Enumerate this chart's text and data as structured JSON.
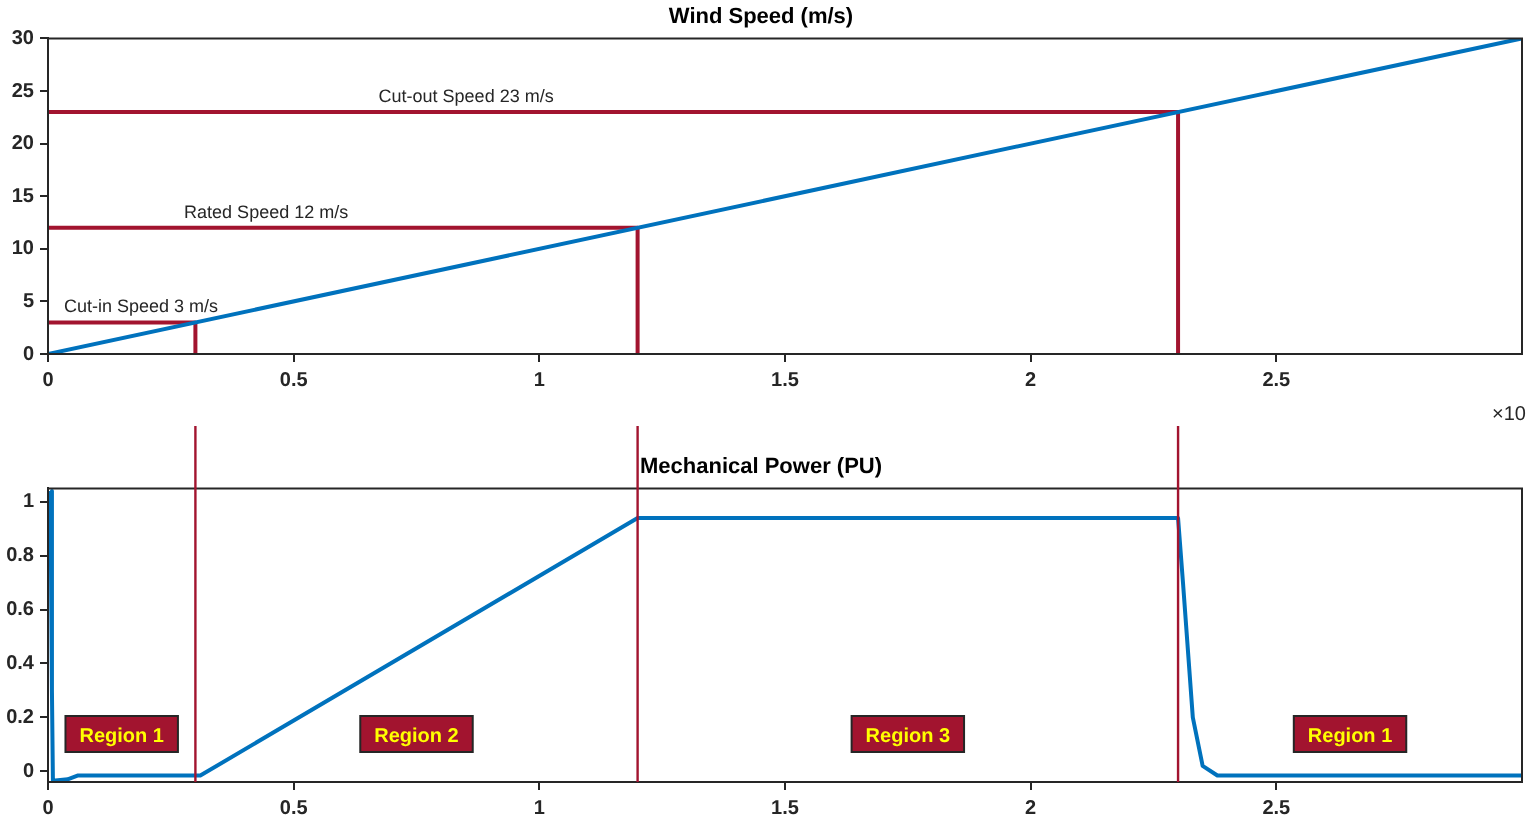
{
  "chart_data": [
    {
      "type": "line",
      "title": "Wind Speed (m/s)",
      "xlim": [
        0,
        3
      ],
      "ylim": [
        0,
        30
      ],
      "xticks": [
        0,
        0.5,
        1,
        1.5,
        2,
        2.5
      ],
      "yticks": [
        0,
        5,
        10,
        15,
        20,
        25,
        30
      ],
      "grid": false,
      "legend": false,
      "marker": "none",
      "line_style": "solid",
      "annotations": [
        "×10"
      ],
      "series": [
        {
          "color": "#0072bd",
          "x": [
            0,
            3
          ],
          "values": [
            0,
            30
          ]
        },
        {
          "name": "Cut-in Speed 3 m/s",
          "color": "#a2142f",
          "x": [
            0,
            0.3,
            0.3
          ],
          "values": [
            3,
            3,
            0
          ]
        },
        {
          "name": "Rated Speed 12 m/s",
          "color": "#a2142f",
          "x": [
            0,
            1.2,
            1.2
          ],
          "values": [
            12,
            12,
            0
          ]
        },
        {
          "name": "Cut-out Speed 23 m/s",
          "color": "#a2142f",
          "x": [
            0,
            2.3,
            2.3
          ],
          "values": [
            23,
            23,
            0
          ]
        }
      ]
    },
    {
      "type": "line",
      "title": "Mechanical Power (PU)",
      "xlim": [
        0,
        3
      ],
      "ylim": [
        -0.04,
        1.05
      ],
      "xticks": [
        0,
        0.5,
        1,
        1.5,
        2,
        2.5
      ],
      "yticks": [
        0,
        0.2,
        0.4,
        0.6,
        0.8,
        1
      ],
      "grid": false,
      "legend": false,
      "marker": "none",
      "line_style": "solid",
      "ref_lines": [
        {
          "axis": "x",
          "value": 0.3,
          "color": "#a2142f"
        },
        {
          "axis": "x",
          "value": 1.2,
          "color": "#a2142f"
        },
        {
          "axis": "x",
          "value": 2.3,
          "color": "#a2142f"
        }
      ],
      "annotations": [
        "Region 1",
        "Region 2",
        "Region 3",
        "Region 1"
      ],
      "series": [
        {
          "color": "#0072bd",
          "x": [
            0.005,
            0.008,
            0.01,
            0.04,
            0.06,
            0.31,
            1.2,
            2.3,
            2.31,
            2.33,
            2.35,
            2.38,
            3
          ],
          "values": [
            1.04,
            0.3,
            -0.035,
            -0.03,
            -0.016,
            -0.016,
            0.94,
            0.94,
            0.7,
            0.2,
            0.02,
            -0.016,
            -0.016
          ]
        }
      ]
    }
  ]
}
